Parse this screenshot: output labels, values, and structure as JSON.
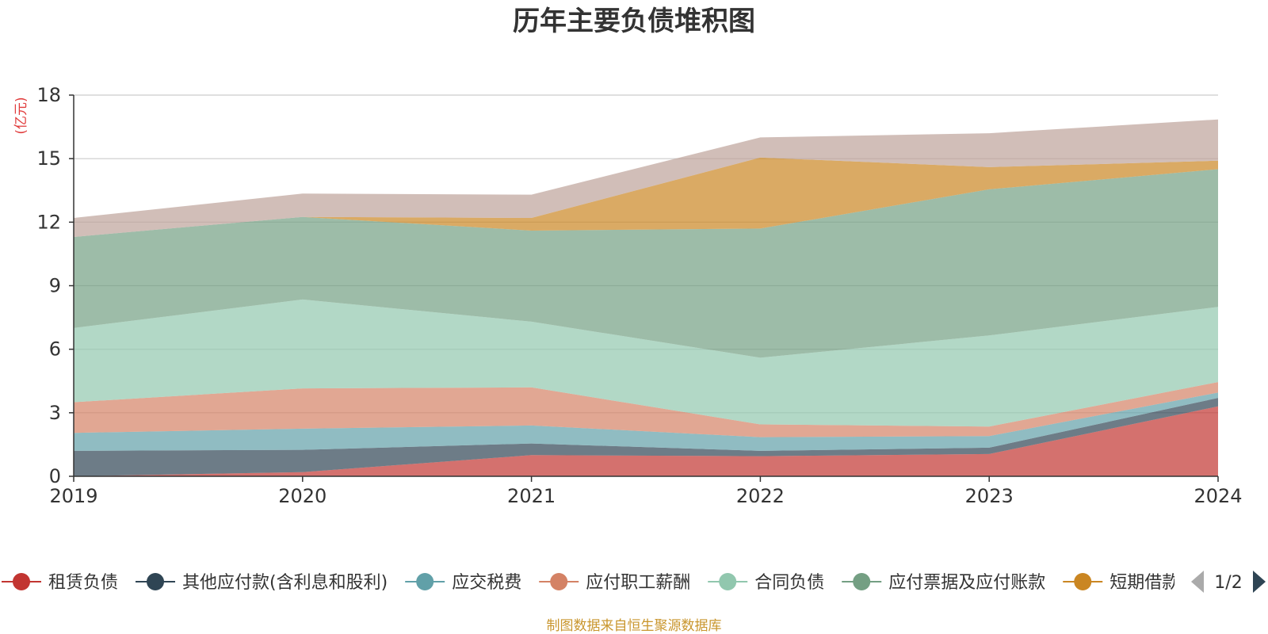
{
  "chart_data": {
    "type": "area",
    "stacked": true,
    "title": "历年主要负债堆积图",
    "ylabel": "(亿元)",
    "xlabel": "",
    "x": [
      "2019",
      "2020",
      "2021",
      "2022",
      "2023",
      "2024"
    ],
    "ylim": [
      0,
      18
    ],
    "yticks": [
      0,
      3,
      6,
      9,
      12,
      15,
      18
    ],
    "grid": true,
    "legend_position": "bottom",
    "series": [
      {
        "name": "租赁负债",
        "color": "#c23531",
        "values": [
          0.0,
          0.2,
          1.0,
          0.95,
          1.05,
          3.3
        ]
      },
      {
        "name": "其他应付款(含利息和股利)",
        "color": "#2f4554",
        "values": [
          1.2,
          1.05,
          0.55,
          0.25,
          0.3,
          0.4
        ]
      },
      {
        "name": "应交税费",
        "color": "#61a0a8",
        "values": [
          0.85,
          1.0,
          0.85,
          0.65,
          0.55,
          0.25
        ]
      },
      {
        "name": "应付职工薪酬",
        "color": "#d48265",
        "values": [
          1.45,
          1.9,
          1.8,
          0.6,
          0.45,
          0.5
        ]
      },
      {
        "name": "合同负债",
        "color": "#91c7ae",
        "values": [
          3.5,
          4.2,
          3.1,
          3.15,
          4.3,
          3.55
        ]
      },
      {
        "name": "应付票据及应付账款",
        "color": "#749f83",
        "values": [
          4.3,
          3.9,
          4.3,
          6.1,
          6.9,
          6.5
        ]
      },
      {
        "name": "短期借款",
        "color": "#ca8622",
        "values": [
          0.0,
          0.0,
          0.6,
          3.35,
          1.05,
          0.4
        ]
      },
      {
        "name": "",
        "color": "#bda29a",
        "values": [
          0.9,
          1.1,
          1.1,
          0.95,
          1.6,
          1.95
        ]
      }
    ]
  },
  "legend": {
    "items": [
      {
        "label": "租赁负债",
        "color": "#c23531"
      },
      {
        "label": "其他应付款(含利息和股利)",
        "color": "#2f4554"
      },
      {
        "label": "应交税费",
        "color": "#61a0a8"
      },
      {
        "label": "应付职工薪酬",
        "color": "#d48265"
      },
      {
        "label": "合同负债",
        "color": "#91c7ae"
      },
      {
        "label": "应付票据及应付账款",
        "color": "#749f83"
      },
      {
        "label": "短期借款",
        "color": "#ca8622"
      }
    ],
    "page": "1/2",
    "prev_icon": "triangle-left-icon",
    "next_icon": "triangle-right-icon"
  },
  "source": "制图数据来自恒生聚源数据库"
}
